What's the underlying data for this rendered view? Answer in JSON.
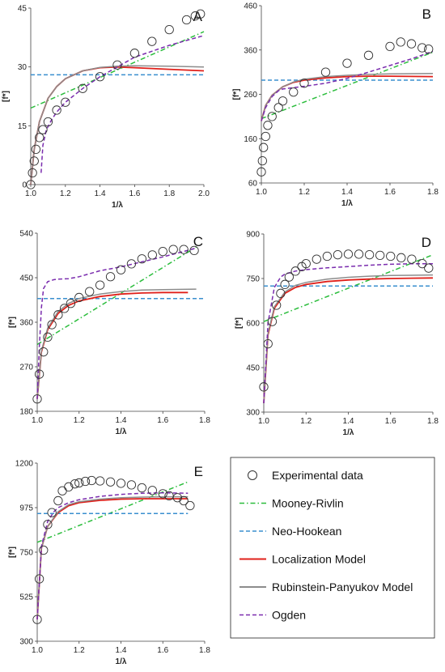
{
  "legend": {
    "items": [
      {
        "label": "Experimental data",
        "kind": "marker",
        "color": "#333333"
      },
      {
        "label": "Mooney-Rivlin",
        "kind": "dashdot",
        "color": "#2bbd3c"
      },
      {
        "label": "Neo-Hookean",
        "kind": "dash",
        "color": "#3a8fcf"
      },
      {
        "label": "Localization Model",
        "kind": "solid",
        "color": "#e0201a"
      },
      {
        "label": "Rubinstein-Panyukov Model",
        "kind": "solid",
        "color": "#8c8c8c"
      },
      {
        "label": "Ogden",
        "kind": "dash",
        "color": "#7a2cae"
      }
    ]
  },
  "chart_data": [
    {
      "panel": "A",
      "type": "line",
      "xlabel": "1/λ",
      "ylabel": "[f*]",
      "xlim": [
        1.0,
        2.0
      ],
      "ylim": [
        0,
        45
      ],
      "xticks": [
        "1.0",
        "1.2",
        "1.4",
        "1.6",
        "1.8",
        "2.0"
      ],
      "yticks": [
        "0",
        "15",
        "30",
        "45"
      ],
      "experimental": {
        "x": [
          1.0,
          1.01,
          1.02,
          1.03,
          1.05,
          1.07,
          1.1,
          1.15,
          1.2,
          1.3,
          1.4,
          1.5,
          1.6,
          1.7,
          1.8,
          1.9,
          1.95,
          1.98
        ],
        "y": [
          0,
          3,
          6,
          9,
          12,
          14,
          16,
          19,
          21,
          24.5,
          27.5,
          30.5,
          33.5,
          36.5,
          39.5,
          42,
          43,
          43.5
        ]
      },
      "series": [
        {
          "name": "Mooney-Rivlin",
          "x": [
            1.0,
            2.0
          ],
          "y": [
            19.5,
            39
          ]
        },
        {
          "name": "Neo-Hookean",
          "x": [
            1.0,
            2.0
          ],
          "y": [
            28,
            28
          ]
        },
        {
          "name": "Localization Model",
          "x": [
            1.0,
            1.02,
            1.05,
            1.1,
            1.15,
            1.2,
            1.3,
            1.4,
            1.5,
            1.6,
            1.8,
            2.0
          ],
          "y": [
            0,
            9,
            16,
            22,
            25,
            27,
            29,
            29.8,
            30,
            29.8,
            29.4,
            29
          ]
        },
        {
          "name": "Rubinstein-Panyukov Model",
          "x": [
            1.0,
            1.02,
            1.05,
            1.1,
            1.15,
            1.2,
            1.3,
            1.4,
            1.5,
            1.6,
            1.8,
            2.0
          ],
          "y": [
            0,
            9,
            16,
            22,
            25,
            27,
            29,
            29.9,
            30.2,
            30.3,
            30.2,
            30
          ]
        },
        {
          "name": "Ogden",
          "x": [
            1.06,
            1.07,
            1.09,
            1.12,
            1.15,
            1.2,
            1.3,
            1.4,
            1.5,
            1.6,
            1.8,
            2.0
          ],
          "y": [
            3,
            10,
            14,
            16.5,
            18.5,
            21,
            24.5,
            27.5,
            30,
            32.5,
            35.5,
            38
          ]
        }
      ]
    },
    {
      "panel": "B",
      "type": "line",
      "xlabel": "1/λ",
      "ylabel": "[f*]",
      "xlim": [
        1.0,
        1.8
      ],
      "ylim": [
        60,
        460
      ],
      "xticks": [
        "1.0",
        "1.2",
        "1.4",
        "1.6",
        "1.8"
      ],
      "yticks": [
        "60",
        "160",
        "260",
        "360",
        "460"
      ],
      "experimental": {
        "x": [
          1.0,
          1.005,
          1.01,
          1.02,
          1.03,
          1.05,
          1.08,
          1.1,
          1.15,
          1.2,
          1.3,
          1.4,
          1.5,
          1.6,
          1.65,
          1.7,
          1.75,
          1.78
        ],
        "y": [
          85,
          110,
          140,
          165,
          190,
          210,
          230,
          245,
          265,
          285,
          310,
          330,
          348,
          368,
          378,
          374,
          365,
          362
        ]
      },
      "series": [
        {
          "name": "Mooney-Rivlin",
          "x": [
            1.0,
            1.8
          ],
          "y": [
            205,
            355
          ]
        },
        {
          "name": "Neo-Hookean",
          "x": [
            1.0,
            1.8
          ],
          "y": [
            292,
            292
          ]
        },
        {
          "name": "Localization Model",
          "x": [
            1.0,
            1.02,
            1.05,
            1.1,
            1.15,
            1.2,
            1.3,
            1.4,
            1.5,
            1.6,
            1.8
          ],
          "y": [
            200,
            235,
            258,
            277,
            287,
            292,
            297,
            300,
            301,
            301,
            300
          ]
        },
        {
          "name": "Rubinstein-Panyukov Model",
          "x": [
            1.0,
            1.02,
            1.05,
            1.1,
            1.15,
            1.2,
            1.3,
            1.4,
            1.5,
            1.6,
            1.8
          ],
          "y": [
            200,
            235,
            258,
            277,
            288,
            294,
            300,
            303,
            305,
            306,
            307
          ]
        },
        {
          "name": "Ogden",
          "x": [
            1.0,
            1.02,
            1.05,
            1.08,
            1.1,
            1.2,
            1.3,
            1.4,
            1.5,
            1.6,
            1.7,
            1.8
          ],
          "y": [
            200,
            230,
            255,
            268,
            272,
            278,
            285,
            296,
            310,
            325,
            340,
            357
          ]
        }
      ]
    },
    {
      "panel": "C",
      "type": "line",
      "xlabel": "1/λ",
      "ylabel": "[f*]",
      "xlim": [
        1.0,
        1.8
      ],
      "ylim": [
        180,
        540
      ],
      "xticks": [
        "1.0",
        "1.2",
        "1.4",
        "1.6",
        "1.8"
      ],
      "yticks": [
        "180",
        "270",
        "360",
        "450",
        "540"
      ],
      "experimental": {
        "x": [
          1.0,
          1.01,
          1.03,
          1.05,
          1.07,
          1.1,
          1.13,
          1.16,
          1.2,
          1.25,
          1.3,
          1.35,
          1.4,
          1.45,
          1.5,
          1.55,
          1.6,
          1.65,
          1.7,
          1.75
        ],
        "y": [
          205,
          255,
          300,
          330,
          355,
          375,
          388,
          398,
          410,
          422,
          435,
          452,
          466,
          478,
          488,
          496,
          503,
          507,
          507,
          505
        ]
      },
      "series": [
        {
          "name": "Mooney-Rivlin",
          "x": [
            1.0,
            1.76
          ],
          "y": [
            315,
            512
          ]
        },
        {
          "name": "Neo-Hookean",
          "x": [
            1.0,
            1.8
          ],
          "y": [
            408,
            408
          ]
        },
        {
          "name": "Localization Model",
          "x": [
            1.0,
            1.02,
            1.05,
            1.1,
            1.15,
            1.2,
            1.3,
            1.4,
            1.5,
            1.6,
            1.72
          ],
          "y": [
            205,
            300,
            345,
            378,
            394,
            403,
            412,
            417,
            419,
            420,
            420
          ]
        },
        {
          "name": "Rubinstein-Panyukov Model",
          "x": [
            1.0,
            1.02,
            1.05,
            1.1,
            1.15,
            1.2,
            1.3,
            1.4,
            1.5,
            1.6,
            1.76
          ],
          "y": [
            205,
            302,
            348,
            382,
            398,
            408,
            417,
            422,
            425,
            426,
            427
          ]
        },
        {
          "name": "Ogden",
          "x": [
            1.0,
            1.01,
            1.02,
            1.03,
            1.05,
            1.08,
            1.1,
            1.15,
            1.2,
            1.25,
            1.3,
            1.4,
            1.5,
            1.6,
            1.7,
            1.76
          ],
          "y": [
            205,
            310,
            390,
            428,
            442,
            446,
            447,
            448,
            452,
            458,
            464,
            472,
            482,
            492,
            503,
            510
          ]
        }
      ]
    },
    {
      "panel": "D",
      "type": "line",
      "xlabel": "1/λ",
      "ylabel": "[f*]",
      "xlim": [
        1.0,
        1.8
      ],
      "ylim": [
        300,
        900
      ],
      "xticks": [
        "1.0",
        "1.2",
        "1.4",
        "1.6",
        "1.8"
      ],
      "yticks": [
        "300",
        "450",
        "600",
        "750",
        "900"
      ],
      "experimental": {
        "x": [
          1.0,
          1.02,
          1.04,
          1.06,
          1.08,
          1.1,
          1.12,
          1.15,
          1.18,
          1.2,
          1.25,
          1.3,
          1.35,
          1.4,
          1.45,
          1.5,
          1.55,
          1.6,
          1.65,
          1.7,
          1.75,
          1.78
        ],
        "y": [
          385,
          530,
          605,
          660,
          700,
          730,
          755,
          775,
          790,
          800,
          815,
          825,
          830,
          832,
          832,
          830,
          828,
          825,
          820,
          815,
          800,
          785
        ]
      },
      "series": [
        {
          "name": "Mooney-Rivlin",
          "x": [
            1.0,
            1.8
          ],
          "y": [
            605,
            830
          ]
        },
        {
          "name": "Neo-Hookean",
          "x": [
            1.0,
            1.8
          ],
          "y": [
            725,
            725
          ]
        },
        {
          "name": "Localization Model",
          "x": [
            1.0,
            1.02,
            1.05,
            1.1,
            1.15,
            1.2,
            1.3,
            1.4,
            1.5,
            1.6,
            1.8
          ],
          "y": [
            330,
            560,
            650,
            700,
            720,
            730,
            740,
            745,
            748,
            750,
            752
          ]
        },
        {
          "name": "Rubinstein-Panyukov Model",
          "x": [
            1.0,
            1.02,
            1.05,
            1.1,
            1.15,
            1.2,
            1.3,
            1.4,
            1.5,
            1.6,
            1.8
          ],
          "y": [
            330,
            565,
            655,
            705,
            727,
            737,
            748,
            754,
            758,
            760,
            762
          ]
        },
        {
          "name": "Ogden",
          "x": [
            1.0,
            1.02,
            1.05,
            1.08,
            1.1,
            1.15,
            1.2,
            1.3,
            1.4,
            1.5,
            1.6,
            1.7,
            1.8
          ],
          "y": [
            330,
            600,
            720,
            755,
            765,
            775,
            780,
            786,
            790,
            795,
            798,
            800,
            800
          ]
        }
      ]
    },
    {
      "panel": "E",
      "type": "line",
      "xlabel": "1/λ",
      "ylabel": "[f*]",
      "xlim": [
        1.0,
        1.8
      ],
      "ylim": [
        300,
        1200
      ],
      "xticks": [
        "1.0",
        "1.2",
        "1.4",
        "1.6",
        "1.8"
      ],
      "yticks": [
        "300",
        "525",
        "750",
        "975",
        "1200"
      ],
      "experimental": {
        "x": [
          1.0,
          1.01,
          1.03,
          1.05,
          1.07,
          1.1,
          1.12,
          1.15,
          1.18,
          1.2,
          1.23,
          1.26,
          1.3,
          1.35,
          1.4,
          1.45,
          1.5,
          1.55,
          1.6,
          1.63,
          1.67,
          1.7,
          1.73
        ],
        "y": [
          410,
          615,
          760,
          890,
          950,
          1010,
          1060,
          1080,
          1095,
          1100,
          1108,
          1112,
          1110,
          1105,
          1098,
          1090,
          1075,
          1062,
          1045,
          1035,
          1025,
          1010,
          985
        ]
      },
      "series": [
        {
          "name": "Mooney-Rivlin",
          "x": [
            1.0,
            1.72
          ],
          "y": [
            800,
            1105
          ]
        },
        {
          "name": "Neo-Hookean",
          "x": [
            1.0,
            1.72
          ],
          "y": [
            945,
            945
          ]
        },
        {
          "name": "Localization Model",
          "x": [
            1.0,
            1.02,
            1.05,
            1.1,
            1.15,
            1.2,
            1.3,
            1.4,
            1.5,
            1.6,
            1.72
          ],
          "y": [
            410,
            770,
            880,
            950,
            985,
            1000,
            1012,
            1018,
            1020,
            1020,
            1020
          ]
        },
        {
          "name": "Rubinstein-Panyukov Model",
          "x": [
            1.0,
            1.02,
            1.05,
            1.1,
            1.15,
            1.2,
            1.3,
            1.4,
            1.5,
            1.6,
            1.72
          ],
          "y": [
            410,
            770,
            880,
            955,
            990,
            1005,
            1018,
            1025,
            1028,
            1030,
            1030
          ]
        },
        {
          "name": "Ogden",
          "x": [
            1.0,
            1.02,
            1.05,
            1.08,
            1.1,
            1.15,
            1.2,
            1.3,
            1.4,
            1.5,
            1.6,
            1.72
          ],
          "y": [
            410,
            780,
            905,
            955,
            975,
            1000,
            1015,
            1032,
            1042,
            1048,
            1050,
            1048
          ]
        }
      ]
    }
  ]
}
